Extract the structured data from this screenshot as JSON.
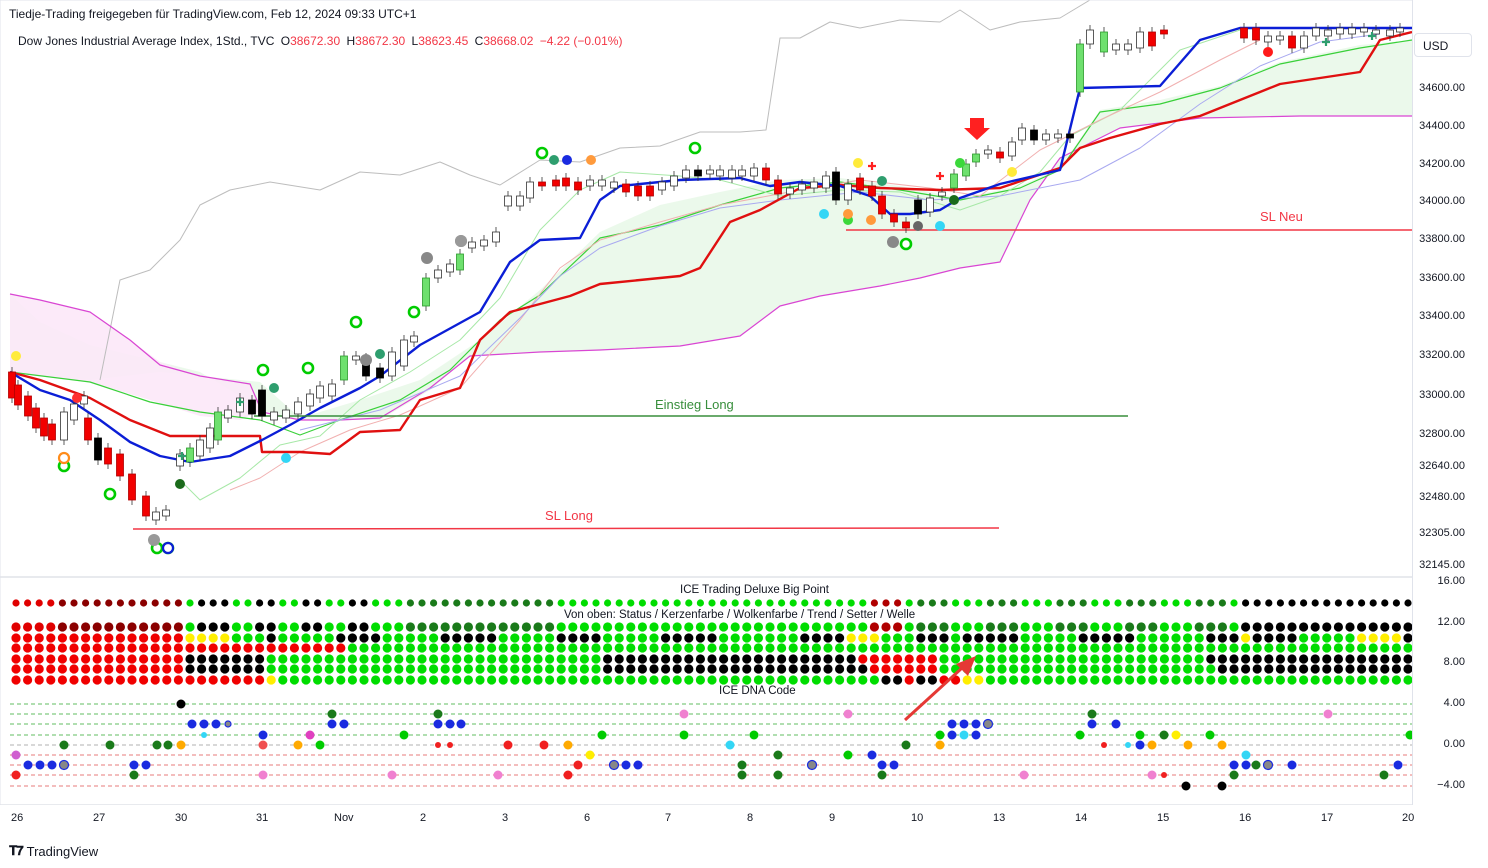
{
  "header": {
    "publisher": "Tiedje-Trading freigegeben für TradingView.com, Feb 12, 2024 09:33 UTC+1"
  },
  "symbol": {
    "name": "Dow Jones Industrial Average Index, 1Std., TVC",
    "o_label": "O",
    "o_value": "38672.30",
    "h_label": "H",
    "h_value": "38672.30",
    "l_label": "L",
    "l_value": "38623.45",
    "c_label": "C",
    "c_value": "38668.02",
    "change": "−4.22 (−0.01%)"
  },
  "currency": "USD",
  "price_axis": [
    "34600.00",
    "34400.00",
    "34200.00",
    "34000.00",
    "33800.00",
    "33600.00",
    "33400.00",
    "33200.00",
    "33000.00",
    "32800.00",
    "32640.00",
    "32480.00",
    "32305.00",
    "32145.00"
  ],
  "indicator_axis": [
    "16.00",
    "12.00",
    "8.00",
    "4.00",
    "0.00",
    "−4.00"
  ],
  "time_axis": [
    "26",
    "27",
    "30",
    "31",
    "Nov",
    "2",
    "3",
    "6",
    "7",
    "8",
    "9",
    "10",
    "13",
    "14",
    "15",
    "16",
    "17",
    "20"
  ],
  "annotations": {
    "sl_neu": "SL Neu",
    "einstieg_long": "Einstieg Long",
    "sl_long": "SL Long"
  },
  "indicator": {
    "title": "ICE Trading Deluxe Big Point",
    "subtitle": "Von oben: Status / Kerzenfarbe / Wolkenfarbe / Trend / Setter / Welle",
    "dna_title": "ICE DNA Code"
  },
  "footer": {
    "brand": "TradingView"
  },
  "colors": {
    "up": "#00c853",
    "down": "#f23645",
    "tenkan": "#0b1ed6",
    "kijun": "#e01010",
    "cloud": "#e8f8e8",
    "cloud_bear": "#fbe6f6"
  }
}
